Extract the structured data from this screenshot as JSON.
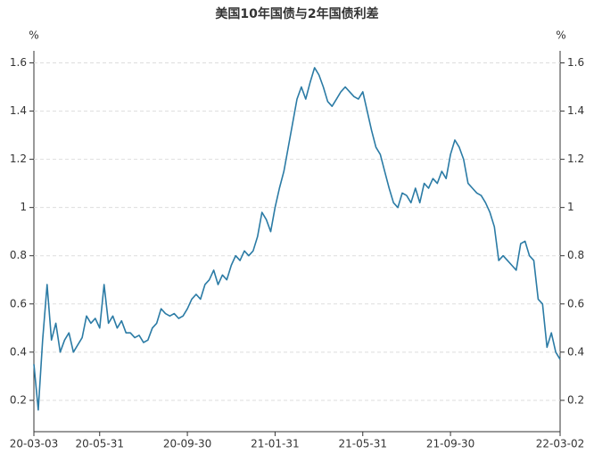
{
  "chart_data": {
    "type": "line",
    "title": "美国10年国债与2年国债利差",
    "ylabel": "%",
    "y2label": "%",
    "categories": [
      "20-03-03",
      null,
      null,
      null,
      null,
      null,
      null,
      null,
      null,
      null,
      null,
      null,
      null,
      null,
      null,
      "20-05-31",
      null,
      null,
      null,
      null,
      null,
      null,
      null,
      null,
      null,
      null,
      null,
      null,
      null,
      null,
      null,
      null,
      null,
      null,
      null,
      "20-09-30",
      null,
      null,
      null,
      null,
      null,
      null,
      null,
      null,
      null,
      null,
      null,
      null,
      null,
      null,
      null,
      null,
      null,
      null,
      null,
      "21-01-31",
      null,
      null,
      null,
      null,
      null,
      null,
      null,
      null,
      null,
      null,
      null,
      null,
      null,
      null,
      null,
      null,
      null,
      null,
      null,
      "21-05-31",
      null,
      null,
      null,
      null,
      null,
      null,
      null,
      null,
      null,
      null,
      null,
      null,
      null,
      null,
      null,
      null,
      null,
      null,
      null,
      "21-09-30",
      null,
      null,
      null,
      null,
      null,
      null,
      null,
      null,
      null,
      null,
      null,
      null,
      null,
      null,
      null,
      null,
      null,
      null,
      null,
      null,
      null,
      null,
      null,
      null,
      "22-03-02"
    ],
    "series": [
      {
        "name": "利差",
        "color": "#2b7ba5",
        "values": [
          0.35,
          0.16,
          0.45,
          0.68,
          0.45,
          0.52,
          0.4,
          0.45,
          0.48,
          0.4,
          0.43,
          0.46,
          0.55,
          0.52,
          0.54,
          0.5,
          0.68,
          0.52,
          0.55,
          0.5,
          0.53,
          0.48,
          0.48,
          0.46,
          0.47,
          0.44,
          0.45,
          0.5,
          0.52,
          0.58,
          0.56,
          0.55,
          0.56,
          0.54,
          0.55,
          0.58,
          0.62,
          0.64,
          0.62,
          0.68,
          0.7,
          0.74,
          0.68,
          0.72,
          0.7,
          0.76,
          0.8,
          0.78,
          0.82,
          0.8,
          0.82,
          0.88,
          0.98,
          0.95,
          0.9,
          1.0,
          1.08,
          1.15,
          1.25,
          1.35,
          1.45,
          1.5,
          1.45,
          1.52,
          1.58,
          1.55,
          1.5,
          1.44,
          1.42,
          1.45,
          1.48,
          1.5,
          1.48,
          1.46,
          1.45,
          1.48,
          1.4,
          1.32,
          1.25,
          1.22,
          1.15,
          1.08,
          1.02,
          1.0,
          1.06,
          1.05,
          1.02,
          1.08,
          1.02,
          1.1,
          1.08,
          1.12,
          1.1,
          1.15,
          1.12,
          1.22,
          1.28,
          1.25,
          1.2,
          1.1,
          1.08,
          1.06,
          1.05,
          1.02,
          0.98,
          0.92,
          0.78,
          0.8,
          0.78,
          0.76,
          0.74,
          0.85,
          0.86,
          0.8,
          0.78,
          0.62,
          0.6,
          0.42,
          0.48,
          0.4,
          0.37
        ]
      }
    ],
    "ylim": [
      0.07,
      1.65
    ],
    "yticks": [
      0.2,
      0.4,
      0.6,
      0.8,
      1,
      1.2,
      1.4,
      1.6
    ],
    "grid": true
  }
}
